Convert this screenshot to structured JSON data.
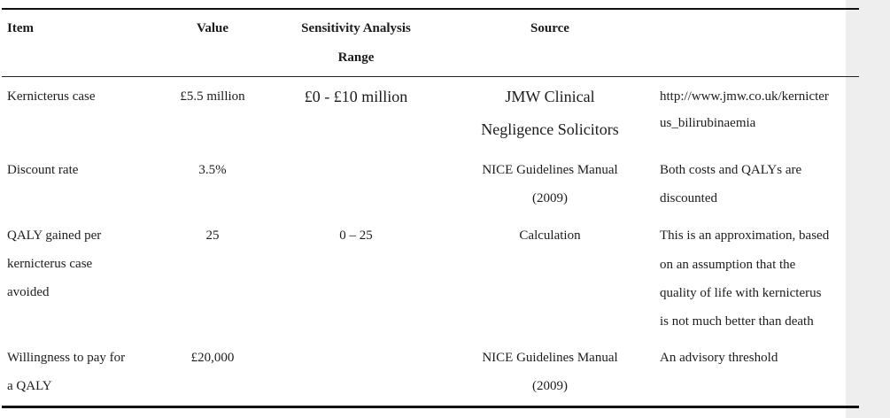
{
  "header": {
    "item": "Item",
    "value": "Value",
    "range_line1": "Sensitivity Analysis",
    "range_line2": "Range",
    "source": "Source"
  },
  "rows": [
    {
      "item": [
        "Kernicterus case"
      ],
      "value": "£5.5 million",
      "range": "£0 - £10 million",
      "source": [
        "JMW Clinical",
        "Negligence Solicitors"
      ],
      "note": [
        "http://www.jmw.co.uk/kernicter",
        "us_bilirubinaemia"
      ]
    },
    {
      "item": [
        "Discount rate"
      ],
      "value": "3.5%",
      "range": "",
      "source": [
        "NICE Guidelines Manual",
        "(2009)"
      ],
      "note": [
        "Both costs and QALYs are",
        "discounted"
      ]
    },
    {
      "item": [
        "QALY gained per",
        "kernicterus case",
        "avoided"
      ],
      "value": "25",
      "range": "0 – 25",
      "source": [
        "Calculation"
      ],
      "note": [
        "This is an approximation, based",
        "on an assumption that the",
        "quality of life with kernicterus",
        "is not much better than death"
      ]
    },
    {
      "item": [
        "Willingness to pay for",
        "a QALY"
      ],
      "value": "£20,000",
      "range": "",
      "source": [
        "NICE Guidelines Manual",
        "(2009)"
      ],
      "note": [
        "An advisory threshold"
      ]
    }
  ]
}
